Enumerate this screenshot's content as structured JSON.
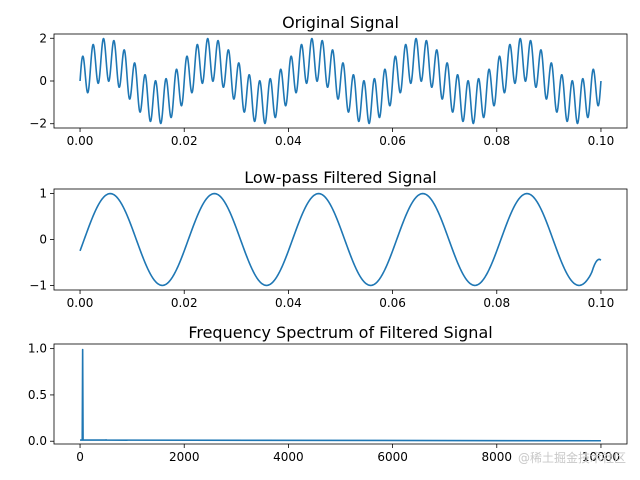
{
  "watermark": "@稀土掘金技术社区",
  "chart_data": [
    {
      "type": "line",
      "title": "Original Signal",
      "xlabel": "",
      "ylabel": "",
      "xlim": [
        -0.005,
        0.105
      ],
      "ylim": [
        -2.2,
        2.2
      ],
      "xticks": [
        0.0,
        0.02,
        0.04,
        0.06,
        0.08,
        0.1
      ],
      "xtick_labels": [
        "0.00",
        "0.02",
        "0.04",
        "0.06",
        "0.08",
        "0.10"
      ],
      "yticks": [
        -2,
        0,
        2
      ],
      "ytick_labels": [
        "−2",
        "0",
        "2"
      ],
      "grid": false,
      "color": "#1f77b4",
      "series": [
        {
          "components": [
            {
              "amplitude": 1,
              "frequency_hz": 50
            },
            {
              "amplitude": 1,
              "frequency_hz": 500
            }
          ],
          "x_range": [
            0,
            0.1
          ]
        }
      ]
    },
    {
      "type": "line",
      "title": "Low-pass Filtered Signal",
      "xlabel": "",
      "ylabel": "",
      "xlim": [
        -0.005,
        0.105
      ],
      "ylim": [
        -1.1,
        1.1
      ],
      "xticks": [
        0.0,
        0.02,
        0.04,
        0.06,
        0.08,
        0.1
      ],
      "xtick_labels": [
        "0.00",
        "0.02",
        "0.04",
        "0.06",
        "0.08",
        "0.10"
      ],
      "yticks": [
        -1,
        0,
        1
      ],
      "ytick_labels": [
        "−1",
        "0",
        "1"
      ],
      "grid": false,
      "color": "#1f77b4",
      "series": [
        {
          "components": [
            {
              "amplitude": 1,
              "frequency_hz": 50,
              "phase_rad": -0.25
            }
          ],
          "x_range": [
            0,
            0.1
          ],
          "end_y": -0.45
        }
      ]
    },
    {
      "type": "line",
      "title": "Frequency Spectrum of Filtered Signal",
      "xlabel": "",
      "ylabel": "",
      "xlim": [
        -500,
        10500
      ],
      "ylim": [
        -0.03,
        1.05
      ],
      "xticks": [
        0,
        2000,
        4000,
        6000,
        8000,
        10000
      ],
      "xtick_labels": [
        "0",
        "2000",
        "4000",
        "6000",
        "8000",
        "10000"
      ],
      "yticks": [
        0.0,
        0.5,
        1.0
      ],
      "ytick_labels": [
        "0.0",
        "0.5",
        "1.0"
      ],
      "grid": false,
      "color": "#1f77b4",
      "series": [
        {
          "peaks": [
            {
              "x": 50,
              "y": 0.99
            },
            {
              "x": 500,
              "y": 0.015
            }
          ],
          "baseline": 0.012,
          "x_range": [
            0,
            10000
          ]
        }
      ]
    }
  ]
}
